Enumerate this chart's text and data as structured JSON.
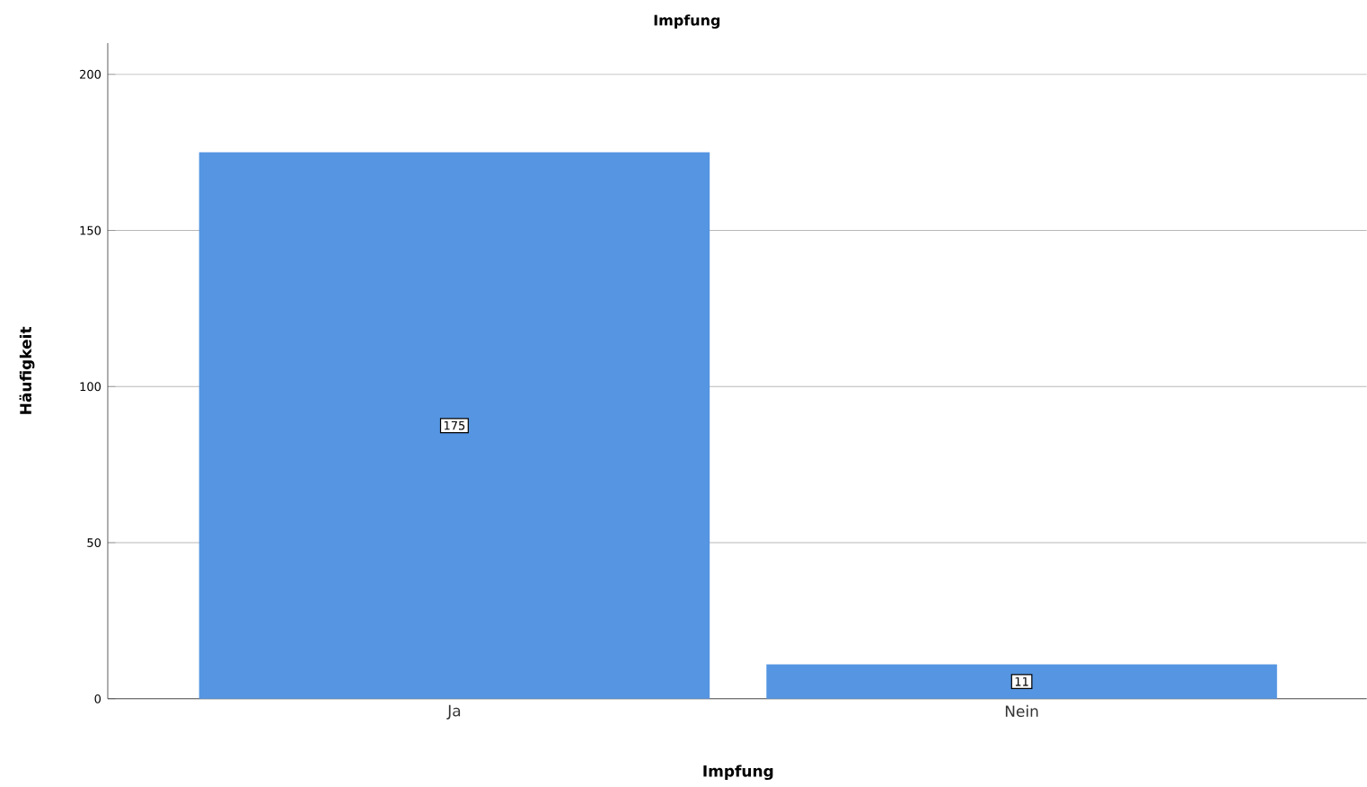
{
  "chart_data": {
    "type": "bar",
    "title": "Impfung",
    "xlabel": "Impfung",
    "ylabel": "Häufigkeit",
    "categories": [
      "Ja",
      "Nein"
    ],
    "values": [
      175,
      11
    ],
    "color": "#5595e2",
    "ylim": [
      0,
      210
    ],
    "yticks": [
      0,
      50,
      100,
      150,
      200
    ],
    "grid": "y",
    "data_labels": true
  }
}
